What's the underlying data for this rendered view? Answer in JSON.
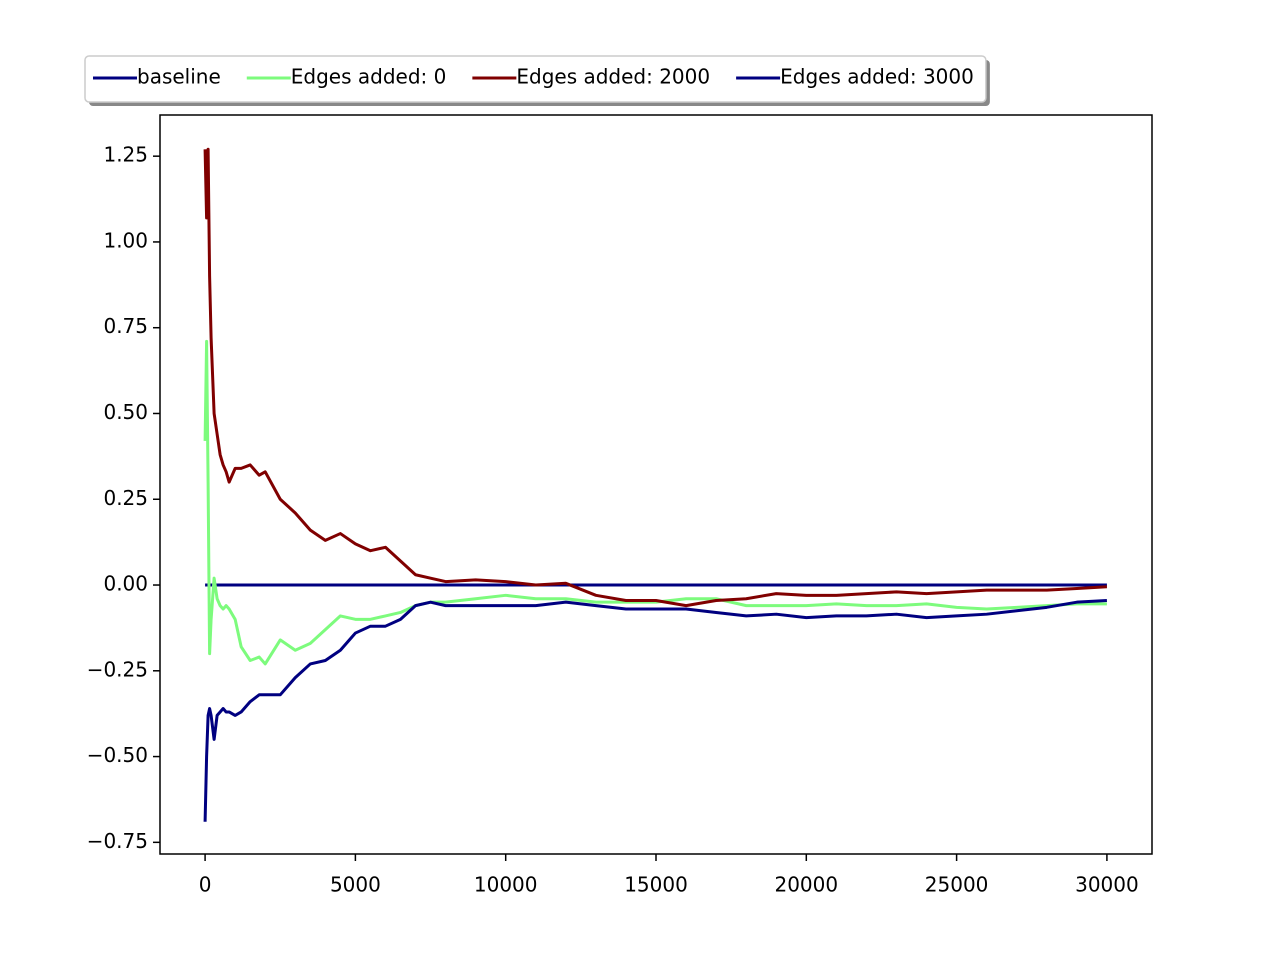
{
  "chart_data": {
    "type": "line",
    "x": [
      0,
      50,
      100,
      150,
      200,
      300,
      400,
      500,
      600,
      700,
      800,
      1000,
      1200,
      1500,
      1800,
      2000,
      2500,
      3000,
      3500,
      4000,
      4500,
      5000,
      5500,
      6000,
      6500,
      7000,
      7500,
      8000,
      9000,
      10000,
      11000,
      12000,
      13000,
      14000,
      15000,
      16000,
      17000,
      18000,
      19000,
      20000,
      21000,
      22000,
      23000,
      24000,
      25000,
      26000,
      27000,
      28000,
      29000,
      30000
    ],
    "series": [
      {
        "name": "baseline",
        "color": "#000080",
        "values": [
          0,
          0,
          0,
          0,
          0,
          0,
          0,
          0,
          0,
          0,
          0,
          0,
          0,
          0,
          0,
          0,
          0,
          0,
          0,
          0,
          0,
          0,
          0,
          0,
          0,
          0,
          0,
          0,
          0,
          0,
          0,
          0,
          0,
          0,
          0,
          0,
          0,
          0,
          0,
          0,
          0,
          0,
          0,
          0,
          0,
          0,
          0,
          0,
          0,
          0
        ]
      },
      {
        "name": "Edges added: 0",
        "color": "#7dfb7d",
        "values": [
          0.42,
          0.71,
          0.3,
          -0.2,
          -0.1,
          0.02,
          -0.04,
          -0.06,
          -0.07,
          -0.06,
          -0.07,
          -0.1,
          -0.18,
          -0.22,
          -0.21,
          -0.23,
          -0.16,
          -0.19,
          -0.17,
          -0.13,
          -0.09,
          -0.1,
          -0.1,
          -0.09,
          -0.08,
          -0.06,
          -0.05,
          -0.05,
          -0.04,
          -0.03,
          -0.04,
          -0.04,
          -0.05,
          -0.05,
          -0.05,
          -0.04,
          -0.04,
          -0.06,
          -0.06,
          -0.06,
          -0.055,
          -0.06,
          -0.06,
          -0.055,
          -0.065,
          -0.07,
          -0.065,
          -0.06,
          -0.055,
          -0.055
        ]
      },
      {
        "name": "Edges added: 2000",
        "color": "#800000",
        "values": [
          1.27,
          1.07,
          1.27,
          0.9,
          0.72,
          0.5,
          0.44,
          0.38,
          0.35,
          0.33,
          0.3,
          0.34,
          0.34,
          0.35,
          0.32,
          0.33,
          0.25,
          0.21,
          0.16,
          0.13,
          0.15,
          0.12,
          0.1,
          0.11,
          0.07,
          0.03,
          0.02,
          0.01,
          0.015,
          0.01,
          0.0,
          0.005,
          -0.03,
          -0.045,
          -0.045,
          -0.06,
          -0.045,
          -0.04,
          -0.025,
          -0.03,
          -0.03,
          -0.025,
          -0.02,
          -0.025,
          -0.02,
          -0.015,
          -0.015,
          -0.015,
          -0.01,
          -0.005
        ]
      },
      {
        "name": "Edges added: 3000",
        "color": "#000080",
        "values": [
          -0.69,
          -0.5,
          -0.38,
          -0.36,
          -0.38,
          -0.45,
          -0.38,
          -0.37,
          -0.36,
          -0.37,
          -0.37,
          -0.38,
          -0.37,
          -0.34,
          -0.32,
          -0.32,
          -0.32,
          -0.27,
          -0.23,
          -0.22,
          -0.19,
          -0.14,
          -0.12,
          -0.12,
          -0.1,
          -0.06,
          -0.05,
          -0.06,
          -0.06,
          -0.06,
          -0.06,
          -0.05,
          -0.06,
          -0.07,
          -0.07,
          -0.07,
          -0.08,
          -0.09,
          -0.085,
          -0.095,
          -0.09,
          -0.09,
          -0.085,
          -0.095,
          -0.09,
          -0.085,
          -0.075,
          -0.065,
          -0.05,
          -0.045
        ]
      }
    ],
    "xlim": [
      -1500,
      31500
    ],
    "xticks": [
      0,
      5000,
      10000,
      15000,
      20000,
      25000,
      30000
    ],
    "ylim": [
      -0.784,
      1.37
    ],
    "yticks": [
      {
        "value": -0.75,
        "label": "−0.75"
      },
      {
        "value": -0.5,
        "label": "−0.50"
      },
      {
        "value": -0.25,
        "label": "−0.25"
      },
      {
        "value": 0,
        "label": "0.00"
      },
      0.25,
      {
        "value": 0.5,
        "label": "0.50"
      },
      0.75,
      {
        "value": 1.0,
        "label": "1.00"
      },
      1.25
    ],
    "legend": "top",
    "grid": false
  }
}
